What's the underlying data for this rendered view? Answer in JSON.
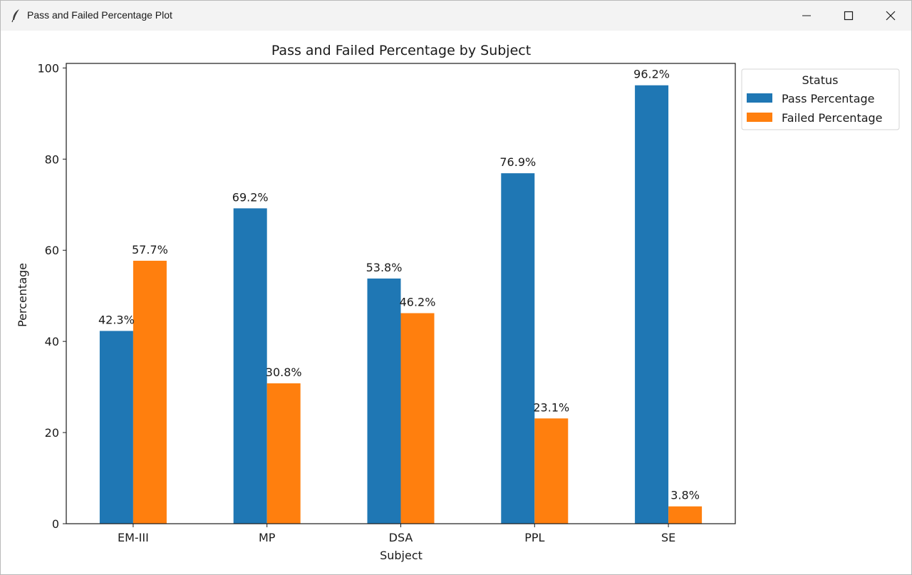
{
  "window": {
    "title": "Pass and Failed Percentage Plot",
    "app_icon": "feather-icon",
    "controls": [
      "minimize-icon",
      "maximize-icon",
      "close-icon"
    ]
  },
  "chart_data": {
    "type": "bar",
    "title": "Pass and Failed Percentage by Subject",
    "xlabel": "Subject",
    "ylabel": "Percentage",
    "categories": [
      "EM-III",
      "MP",
      "DSA",
      "PPL",
      "SE"
    ],
    "series": [
      {
        "name": "Pass Percentage",
        "color": "#1f77b4",
        "values": [
          42.3,
          69.2,
          53.8,
          76.9,
          96.2
        ]
      },
      {
        "name": "Failed Percentage",
        "color": "#ff7f0e",
        "values": [
          57.7,
          30.8,
          46.2,
          23.1,
          3.8
        ]
      }
    ],
    "data_labels": [
      [
        "42.3%",
        "69.2%",
        "53.8%",
        "76.9%",
        "96.2%"
      ],
      [
        "57.7%",
        "30.8%",
        "46.2%",
        "23.1%",
        "3.8%"
      ]
    ],
    "ylim": [
      0,
      101
    ],
    "yticks": [
      "0",
      "20",
      "40",
      "60",
      "80",
      "100"
    ],
    "grid": false,
    "legend": {
      "title": "Status",
      "placement": "outside-right"
    }
  }
}
